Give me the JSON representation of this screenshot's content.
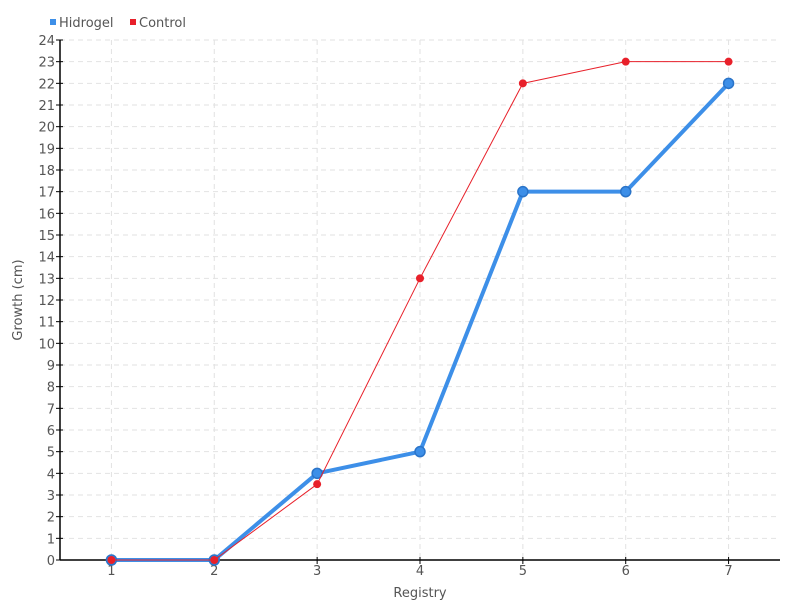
{
  "chart_data": {
    "type": "line",
    "title": "",
    "xlabel": "Registry",
    "ylabel": "Growth (cm)",
    "categories": [
      "1",
      "2",
      "3",
      "4",
      "5",
      "6",
      "7"
    ],
    "ylim": [
      0,
      24
    ],
    "yticks": [
      "0",
      "1",
      "2",
      "3",
      "4",
      "5",
      "6",
      "7",
      "8",
      "9",
      "10",
      "11",
      "12",
      "13",
      "14",
      "15",
      "16",
      "17",
      "18",
      "19",
      "20",
      "21",
      "22",
      "23",
      "24"
    ],
    "grid": true,
    "legend_position": "top-left",
    "series": [
      {
        "name": "Hidrogel",
        "color": "#3d8fe8",
        "values": [
          0,
          0,
          4,
          5,
          17,
          17,
          22
        ]
      },
      {
        "name": "Control",
        "color": "#e8202a",
        "values": [
          0,
          0,
          3.5,
          13,
          22,
          23,
          23
        ]
      }
    ]
  }
}
